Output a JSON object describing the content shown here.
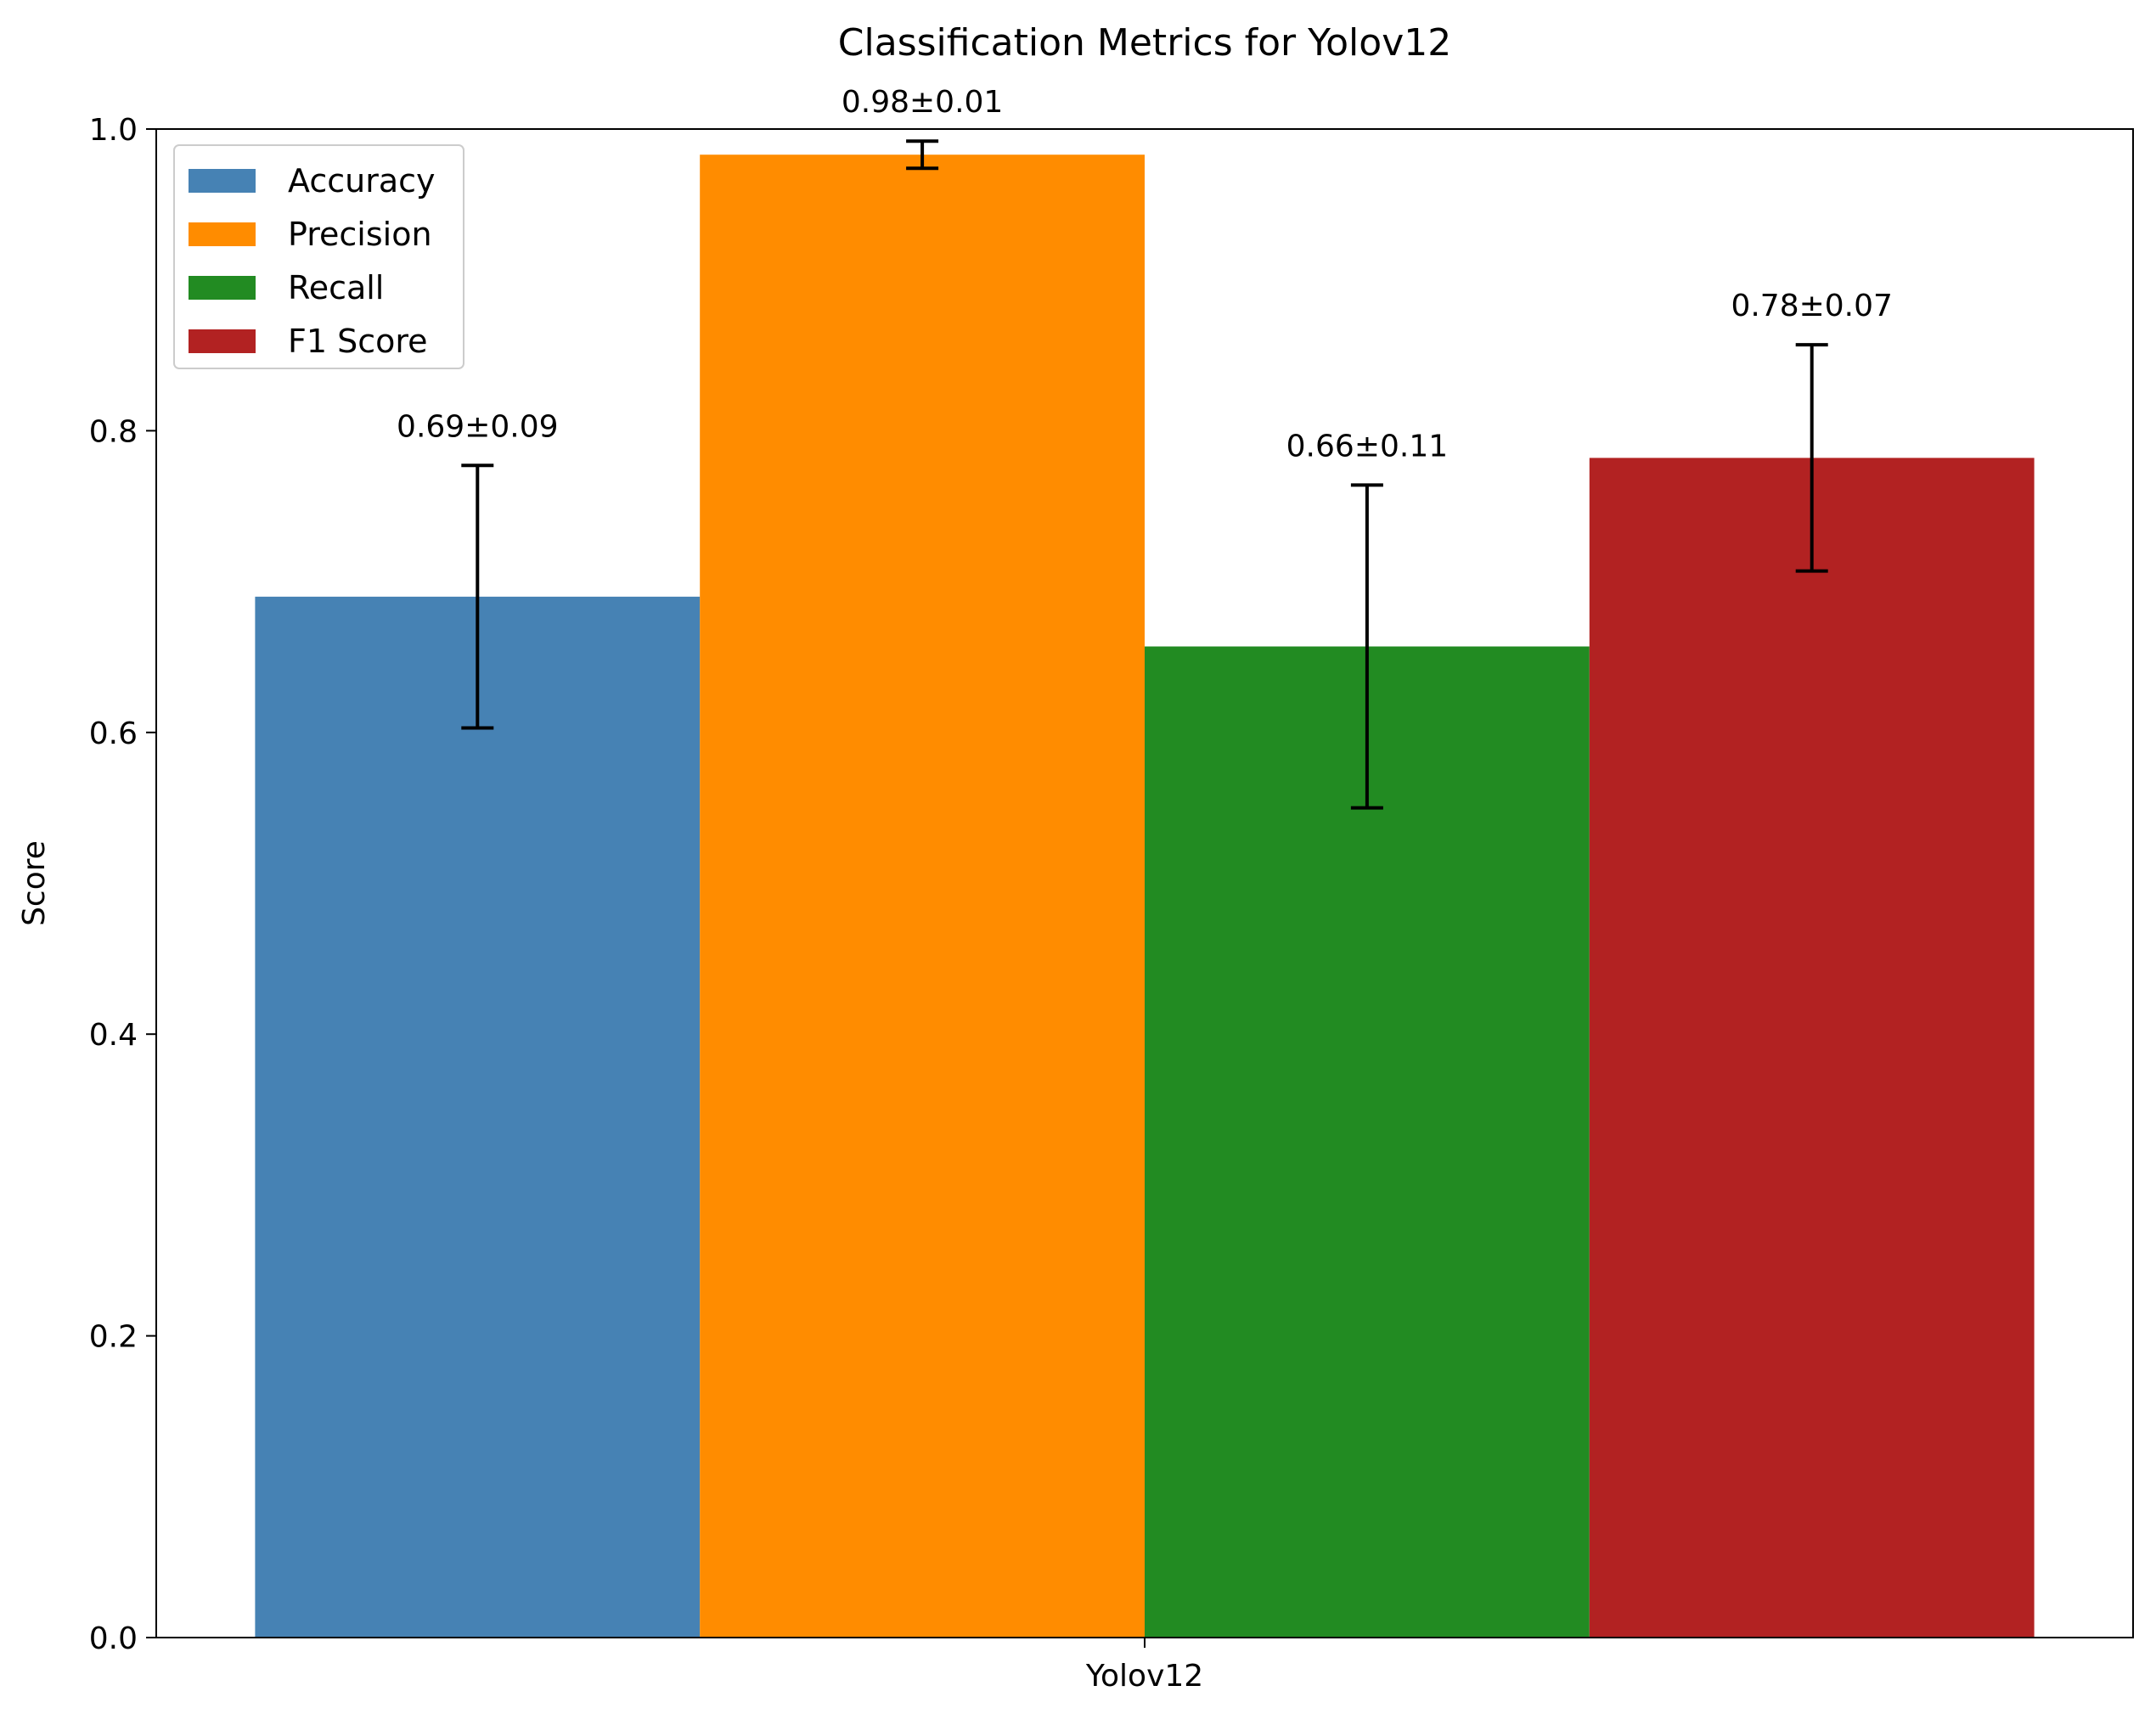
{
  "chart_data": {
    "type": "bar",
    "title": "Classification Metrics for Yolov12",
    "xlabel": "",
    "ylabel": "Score",
    "categories": [
      "Yolov12"
    ],
    "ylim": [
      0.0,
      1.0
    ],
    "yticks": [
      "0.0",
      "0.2",
      "0.4",
      "0.6",
      "0.8",
      "1.0"
    ],
    "grid": false,
    "legend_position": "upper-left",
    "series": [
      {
        "name": "Accuracy",
        "color": "#4682b4",
        "values": [
          0.69
        ],
        "error": [
          0.087
        ],
        "label": "0.69±0.09"
      },
      {
        "name": "Precision",
        "color": "#ff8c00",
        "values": [
          0.983
        ],
        "error": [
          0.009
        ],
        "label": "0.98±0.01"
      },
      {
        "name": "Recall",
        "color": "#228b22",
        "values": [
          0.657
        ],
        "error": [
          0.107
        ],
        "label": "0.66±0.11"
      },
      {
        "name": "F1 Score",
        "color": "#b22222",
        "values": [
          0.782
        ],
        "error": [
          0.075
        ],
        "label": "0.78±0.07"
      }
    ]
  }
}
